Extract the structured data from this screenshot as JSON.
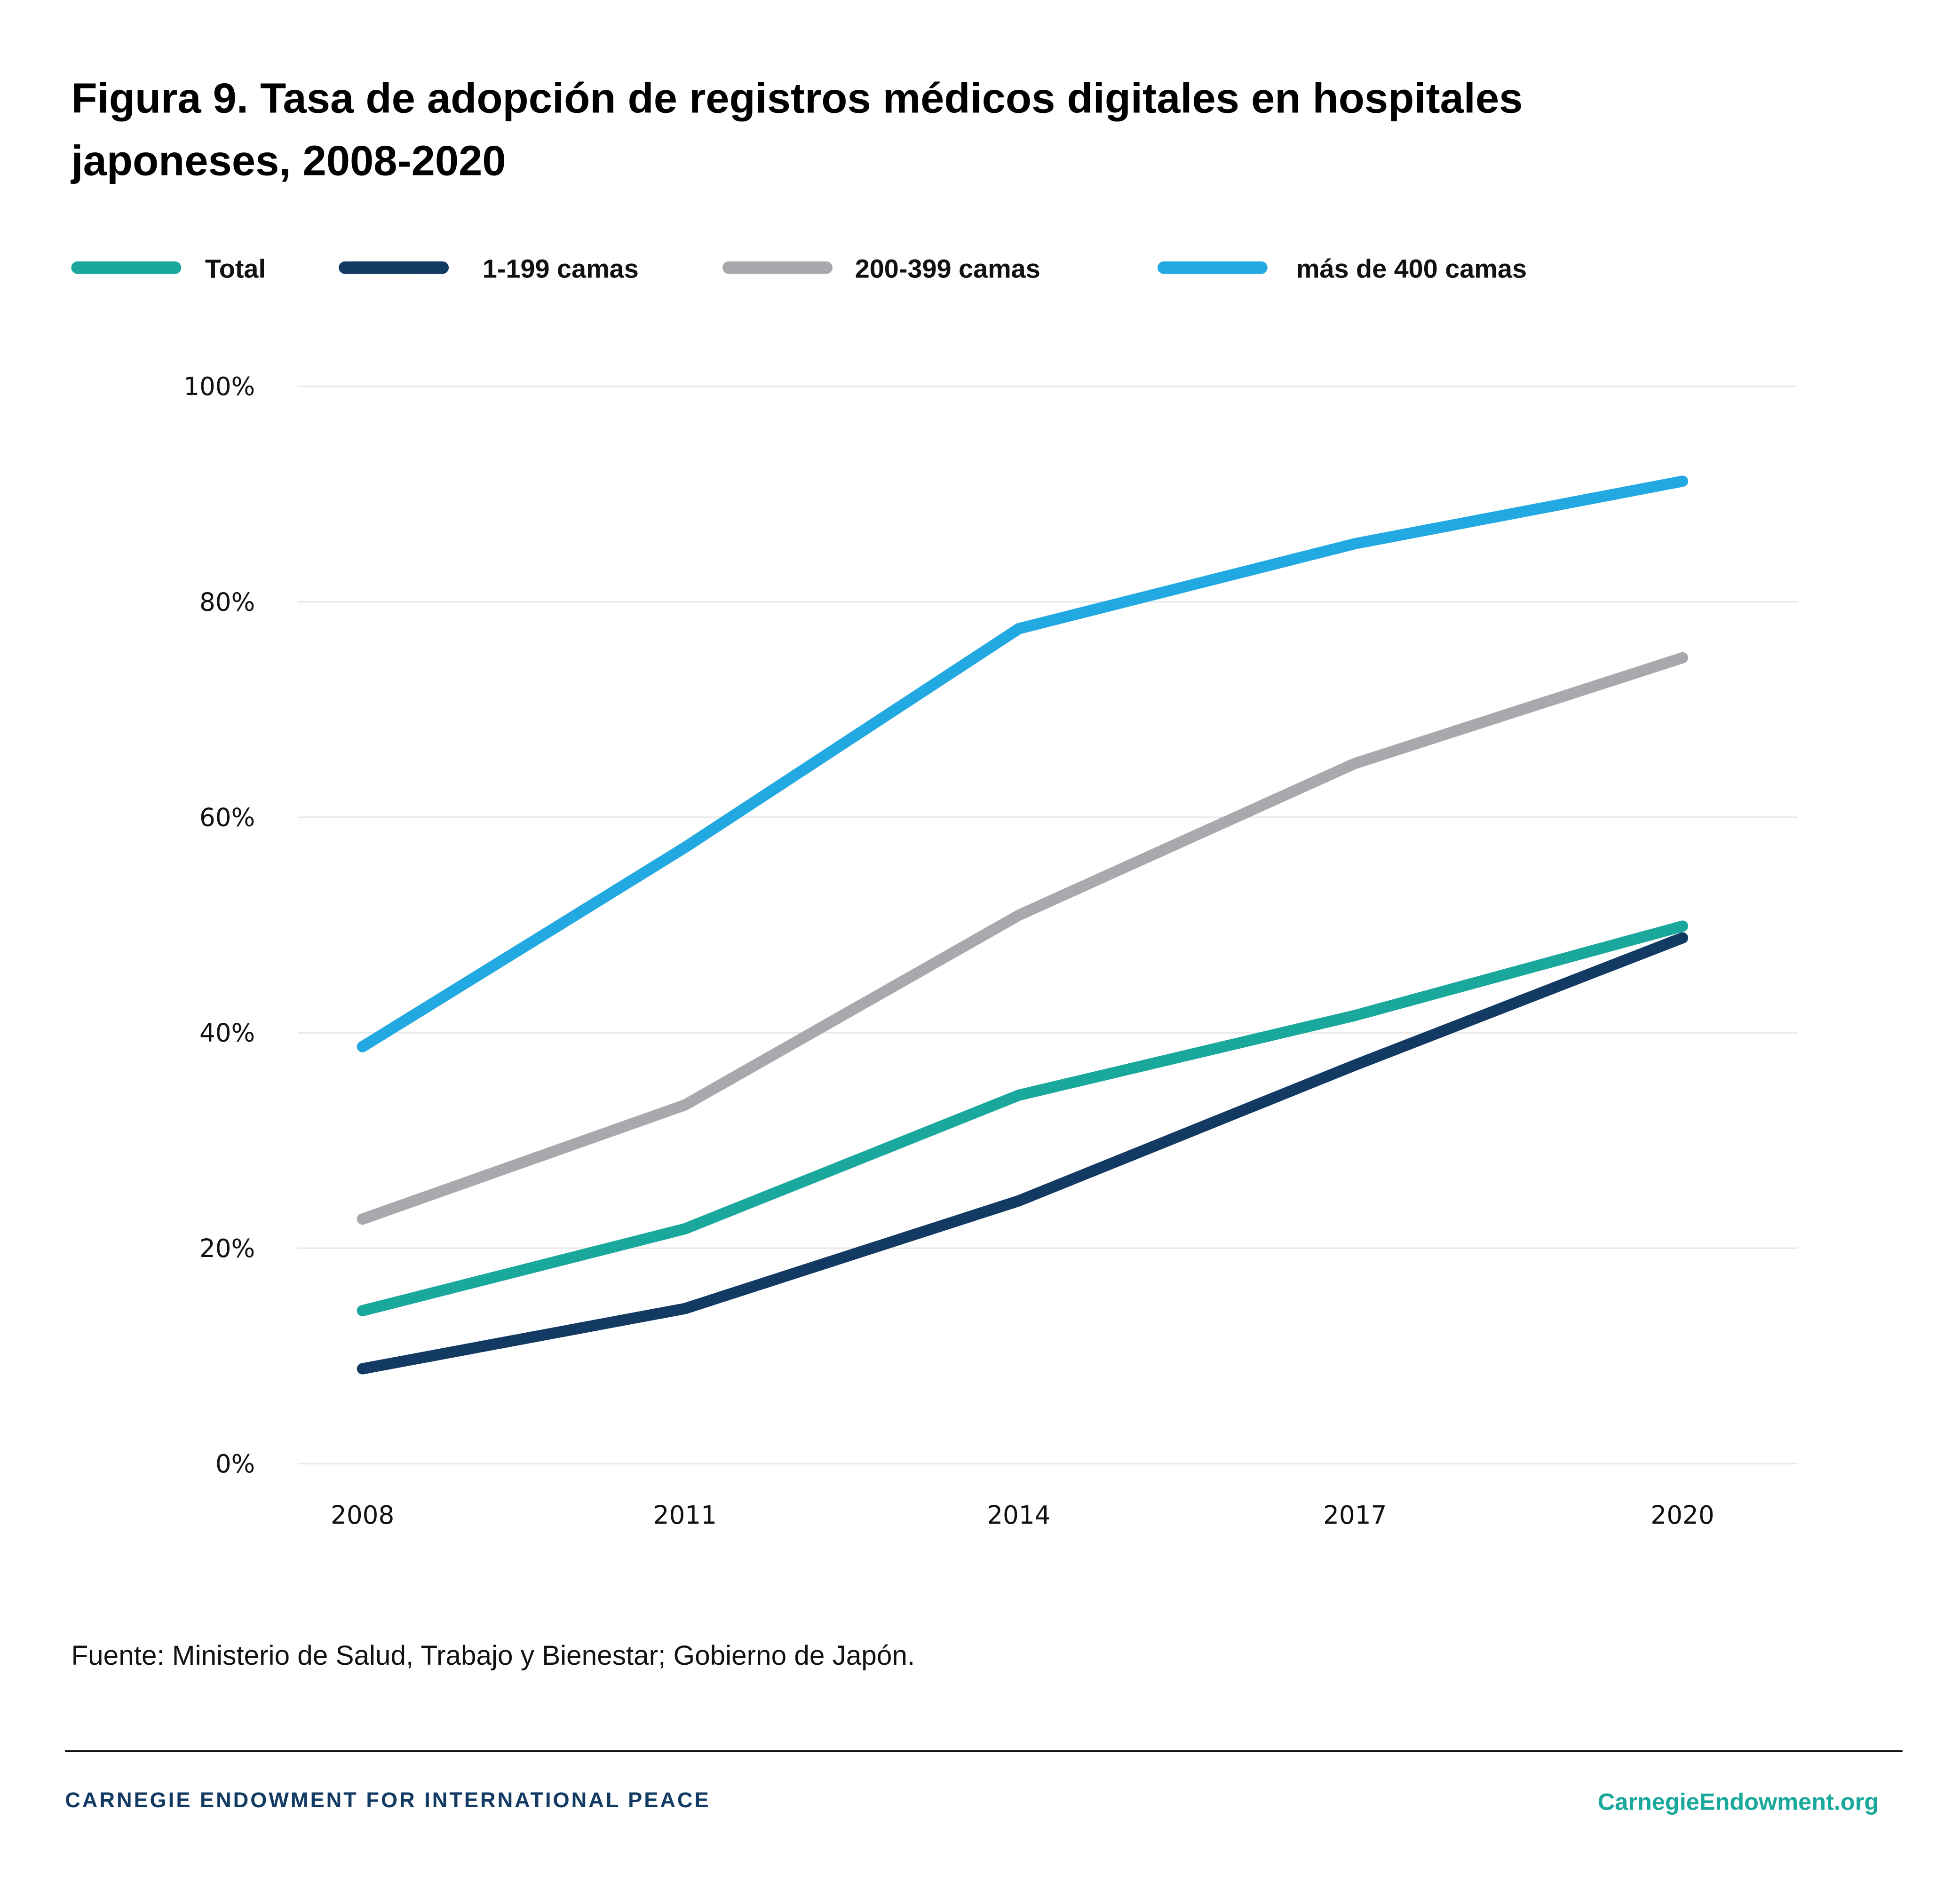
{
  "chart_data": {
    "type": "line",
    "title_lines": [
      "Figura 9. Tasa de adopción de registros médicos digitales en hospitales",
      "japoneses, 2008-2020"
    ],
    "x": [
      "2008",
      "2011",
      "2014",
      "2017",
      "2020"
    ],
    "xlabel": "",
    "ylabel": "",
    "ylim": [
      0,
      100
    ],
    "yticks": [
      "0%",
      "20%",
      "40%",
      "60%",
      "80%",
      "100%"
    ],
    "grid": true,
    "legend_position": "top-left",
    "series": [
      {
        "name": "Total",
        "color": "#1aa89c",
        "values": [
          14.2,
          21.8,
          34.2,
          41.6,
          49.9
        ]
      },
      {
        "name": "1-199 camas",
        "color": "#133a63",
        "values": [
          8.8,
          14.4,
          24.4,
          37.0,
          48.8
        ]
      },
      {
        "name": "200-399 camas",
        "color": "#a7a9ac",
        "values": [
          22.7,
          33.3,
          50.9,
          65.0,
          74.8
        ]
      },
      {
        "name": "más de 400 camas",
        "color": "#22a9e1",
        "values": [
          38.7,
          57.2,
          77.5,
          85.4,
          91.2
        ]
      }
    ]
  },
  "source": "Fuente: Ministerio de Salud, Trabajo y Bienestar; Gobierno de Japón.",
  "footer": {
    "org": "CARNEGIE ENDOWMENT FOR INTERNATIONAL PEACE",
    "url": "CarnegieEndowment.org"
  }
}
